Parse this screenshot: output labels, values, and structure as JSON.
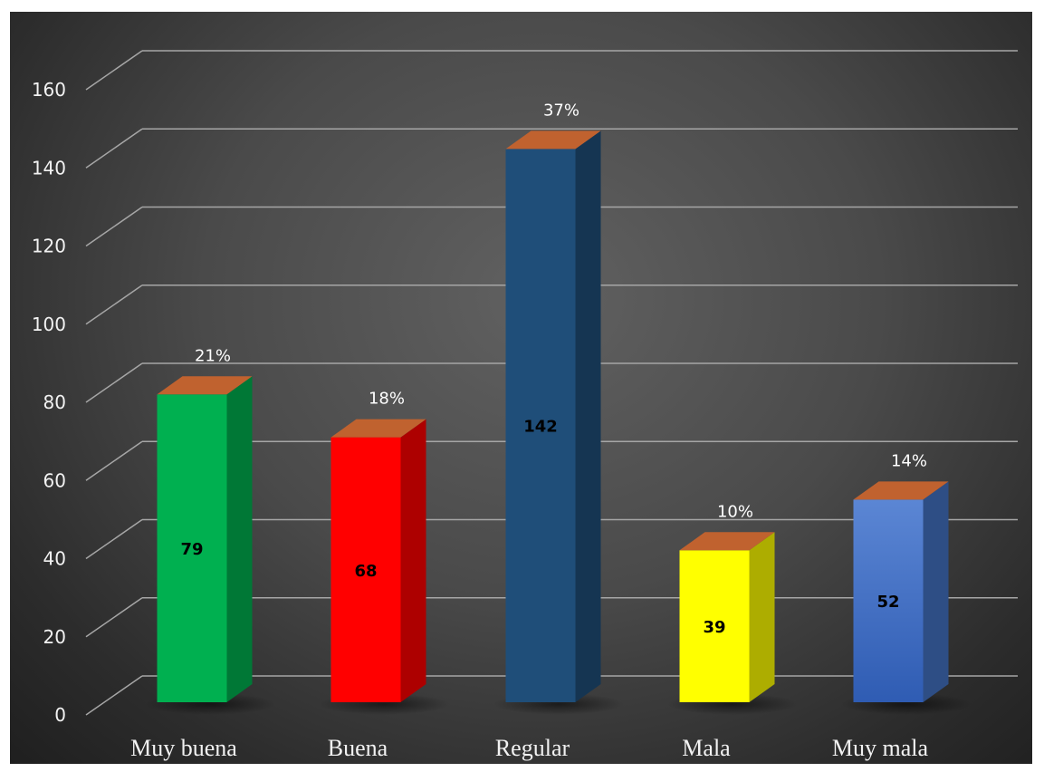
{
  "chart_data": {
    "type": "bar",
    "style": "3d-column",
    "categories": [
      "Muy buena",
      "Buena",
      "Regular",
      "Mala",
      "Muy mala"
    ],
    "values": [
      79,
      68,
      142,
      39,
      52
    ],
    "value_labels": [
      "79",
      "68",
      "142",
      "39",
      "52"
    ],
    "percent_labels": [
      "21%",
      "18%",
      "37%",
      "10%",
      "14%"
    ],
    "bar_colors": [
      "#00b050",
      "#ff0000",
      "#1f4e79",
      "#ffff00",
      "#4472c4"
    ],
    "bar_top_color": "#c0622f",
    "ylim": [
      0,
      160
    ],
    "yticks": [
      "0",
      "20",
      "40",
      "60",
      "80",
      "100",
      "120",
      "140",
      "160"
    ],
    "grid": true,
    "legend": "none"
  }
}
